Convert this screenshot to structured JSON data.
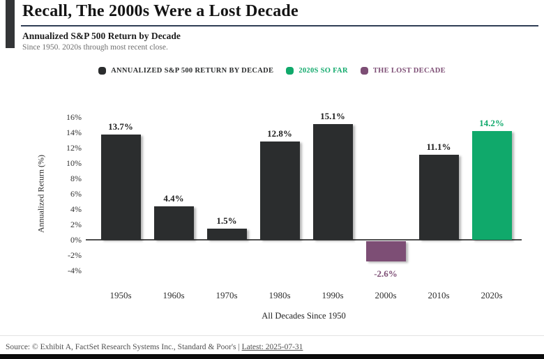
{
  "header": {
    "title": "Recall, The 2000s Were a Lost Decade",
    "subtitle": "Annualized S&P 500 Return by Decade",
    "note": "Since 1950. 2020s through most recent close."
  },
  "chart_data": {
    "type": "bar",
    "title": "Annualized S&P 500 Return by Decade",
    "categories": [
      "1950s",
      "1960s",
      "1970s",
      "1980s",
      "1990s",
      "2000s",
      "2010s",
      "2020s"
    ],
    "values": [
      13.7,
      4.4,
      1.5,
      12.8,
      15.1,
      -2.6,
      11.1,
      14.2
    ],
    "value_labels": [
      "13.7%",
      "4.4%",
      "1.5%",
      "12.8%",
      "15.1%",
      "-2.6%",
      "11.1%",
      "14.2%"
    ],
    "bar_colors": [
      "#2B2D2E",
      "#2B2D2E",
      "#2B2D2E",
      "#2B2D2E",
      "#2B2D2E",
      "#7D4E75",
      "#2B2D2E",
      "#10A96B"
    ],
    "label_colors": [
      "#1d1d1d",
      "#1d1d1d",
      "#1d1d1d",
      "#1d1d1d",
      "#1d1d1d",
      "#7D4E75",
      "#1d1d1d",
      "#10A96B"
    ],
    "xlabel": "All Decades Since 1950",
    "ylabel": "Annualized Return (%)",
    "ylim": [
      -4,
      16
    ],
    "ytick_values": [
      16,
      14,
      12,
      10,
      8,
      6,
      4,
      2,
      0,
      -2,
      -4
    ],
    "ytick_labels": [
      "16%",
      "14%",
      "12%",
      "10%",
      "8%",
      "6%",
      "4%",
      "2%",
      "0%",
      "-2%",
      "-4%"
    ],
    "grid": false,
    "legend_position": "top",
    "legend": [
      {
        "name": "decade-return",
        "label": "ANNUALIZED S&P 500 RETURN BY DECADE",
        "color": "#2B2D2E"
      },
      {
        "name": "2020s-so-far",
        "label": "2020S SO FAR",
        "color": "#10A96B"
      },
      {
        "name": "lost-decade",
        "label": "THE LOST DECADE",
        "color": "#7D4E75"
      }
    ]
  },
  "footer": {
    "source_prefix": "Source: © Exhibit A, FactSet Research Systems Inc., Standard & Poor's | ",
    "latest_link": "Latest: 2025-07-31"
  }
}
